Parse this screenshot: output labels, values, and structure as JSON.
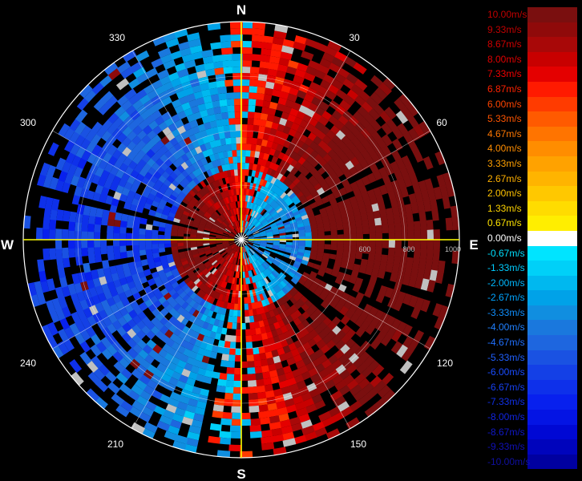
{
  "display": {
    "range_unit": "",
    "colors": {
      "background": "#000000",
      "crosshair": "#ffff00",
      "ring": "#ffffff",
      "no_data": "#c0c0c0"
    }
  },
  "compass": {
    "cardinals": {
      "n": "N",
      "e": "E",
      "s": "S",
      "w": "W"
    },
    "bearings": [
      "30",
      "60",
      "120",
      "150",
      "210",
      "240",
      "300",
      "330"
    ]
  },
  "range_labels": [
    "600",
    "800",
    "1000"
  ],
  "legend": {
    "items": [
      {
        "label": "10.00m/s",
        "color": "#7a0f0f",
        "label_color": "#c00000"
      },
      {
        "label": "9.33m/s",
        "color": "#8f0a0a",
        "label_color": "#c00000"
      },
      {
        "label": "8.67m/s",
        "color": "#a80808",
        "label_color": "#d00000"
      },
      {
        "label": "8.00m/s",
        "color": "#c80000",
        "label_color": "#e00000"
      },
      {
        "label": "7.33m/s",
        "color": "#e40000",
        "label_color": "#f00000"
      },
      {
        "label": "6.87m/s",
        "color": "#ff1a00",
        "label_color": "#ff2200"
      },
      {
        "label": "6.00m/s",
        "color": "#ff3b00",
        "label_color": "#ff4400"
      },
      {
        "label": "5.33m/s",
        "color": "#ff5a00",
        "label_color": "#ff5500"
      },
      {
        "label": "4.67m/s",
        "color": "#ff7400",
        "label_color": "#ff7700"
      },
      {
        "label": "4.00m/s",
        "color": "#ff8d00",
        "label_color": "#ff8d00"
      },
      {
        "label": "3.33m/s",
        "color": "#ffa200",
        "label_color": "#ffa000"
      },
      {
        "label": "2.67m/s",
        "color": "#ffb400",
        "label_color": "#ffb000"
      },
      {
        "label": "2.00m/s",
        "color": "#ffc800",
        "label_color": "#ffc200"
      },
      {
        "label": "1.33m/s",
        "color": "#ffdc00",
        "label_color": "#ffd400"
      },
      {
        "label": "0.67m/s",
        "color": "#ffee00",
        "label_color": "#ffe400"
      },
      {
        "label": "0.00m/s",
        "color": "#ffffff",
        "label_color": "#ffffff"
      },
      {
        "label": "-0.67m/s",
        "color": "#00e4ff",
        "label_color": "#00e0ff"
      },
      {
        "label": "-1.33m/s",
        "color": "#00d0f8",
        "label_color": "#00ccff"
      },
      {
        "label": "-2.00m/s",
        "color": "#00b8ef",
        "label_color": "#00b8ff"
      },
      {
        "label": "-2.67m/s",
        "color": "#00a2e8",
        "label_color": "#00a4ff"
      },
      {
        "label": "-3.33m/s",
        "color": "#108ee0",
        "label_color": "#1090ff"
      },
      {
        "label": "-4.00m/s",
        "color": "#1a78dd",
        "label_color": "#2080ff"
      },
      {
        "label": "-4.67m/s",
        "color": "#1e66df",
        "label_color": "#2070ff"
      },
      {
        "label": "-5.33m/s",
        "color": "#1a52e2",
        "label_color": "#2060ff"
      },
      {
        "label": "-6.00m/s",
        "color": "#1440e6",
        "label_color": "#1a4cff"
      },
      {
        "label": "-6.67m/s",
        "color": "#0e30ea",
        "label_color": "#1640f0"
      },
      {
        "label": "-7.33m/s",
        "color": "#0820ee",
        "label_color": "#1030e8"
      },
      {
        "label": "-8.00m/s",
        "color": "#0414e4",
        "label_color": "#1024e0"
      },
      {
        "label": "-8.67m/s",
        "color": "#0008d4",
        "label_color": "#1018c8"
      },
      {
        "label": "-9.33m/s",
        "color": "#0004bc",
        "label_color": "#1010b8"
      },
      {
        "label": "-10.00m/s",
        "color": "#0000a0",
        "label_color": "#1010a0"
      }
    ]
  }
}
